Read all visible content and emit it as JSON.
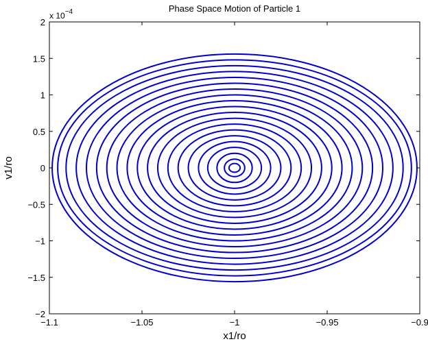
{
  "chart_data": {
    "type": "line",
    "title": "Phase Space Motion of Particle 1",
    "xlabel": "x1/ro",
    "ylabel": "v1/ro",
    "xlim": [
      -1.1,
      -0.9
    ],
    "ylim": [
      -2,
      2
    ],
    "y_multiplier_label": "x 10",
    "y_multiplier_exponent": "−4",
    "x_ticks": [
      -1.1,
      -1.05,
      -1.0,
      -0.95,
      -0.9
    ],
    "x_tick_labels": [
      "−1.1",
      "−1.05",
      "−1",
      "−0.95",
      "−0.9"
    ],
    "y_ticks": [
      -2,
      -1.5,
      -1,
      -0.5,
      0,
      0.5,
      1,
      1.5,
      2
    ],
    "y_tick_labels": [
      "−2",
      "−1.5",
      "−1",
      "−0.5",
      "0",
      "0.5",
      "1",
      "1.5",
      "2"
    ],
    "grid": false,
    "legend": "none",
    "series_color": "#0000cc",
    "series": [
      {
        "center_x": -1.0,
        "center_y": 0,
        "x_semi_axes": [
          0.003,
          0.0055,
          0.0095,
          0.0145,
          0.0195,
          0.025,
          0.0305,
          0.036,
          0.0415,
          0.047,
          0.0525,
          0.058,
          0.0635,
          0.069,
          0.0745,
          0.08,
          0.0855,
          0.091,
          0.0955,
          0.0985
        ],
        "y_semi_axes": [
          0.06,
          0.12,
          0.2,
          0.28,
          0.36,
          0.44,
          0.52,
          0.6,
          0.68,
          0.76,
          0.84,
          0.92,
          1.0,
          1.08,
          1.16,
          1.24,
          1.32,
          1.4,
          1.48,
          1.56
        ]
      }
    ]
  }
}
